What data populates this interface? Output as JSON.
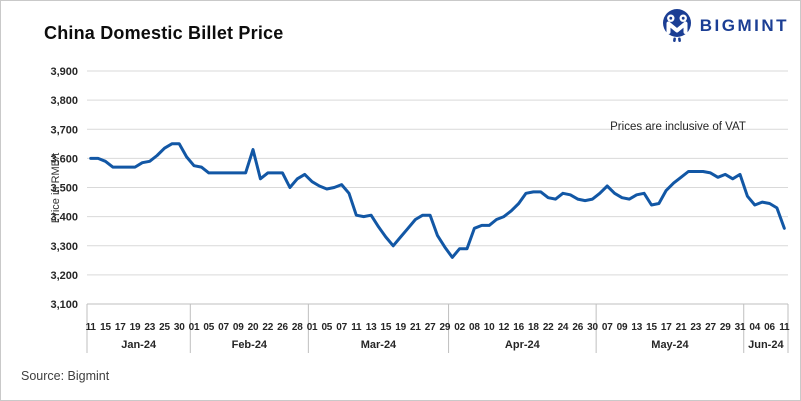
{
  "header": {
    "title": "China Domestic Billet Price",
    "logo_text": "BIGMINT",
    "logo_color": "#1b3e94"
  },
  "footer": {
    "source": "Source: Bigmint"
  },
  "colors": {
    "line": "#1257a5",
    "gridline": "#d9d9d9",
    "axis": "#bfbfbf",
    "tick_text": "#262626"
  },
  "chart_data": {
    "type": "line",
    "title": "China Domestic Billet Price",
    "ylabel": "Price in RMB/t",
    "xlabel": "",
    "annotation": "Prices are inclusive of VAT",
    "series_name": "China domestic billet price (RMB/t)",
    "ylim": [
      3100,
      3900
    ],
    "ytick_step": 100,
    "grid": "horizontal",
    "legend": "none",
    "line_color": "#1257a5",
    "months": [
      {
        "label": "Jan-24",
        "ticks": [
          "11",
          "",
          "15",
          "",
          "17",
          "",
          "19",
          "",
          "23",
          "",
          "25",
          "",
          "30",
          ""
        ],
        "values": [
          3600,
          3600,
          3590,
          3570,
          3570,
          3570,
          3570,
          3585,
          3590,
          3610,
          3635,
          3650,
          3650,
          3605
        ]
      },
      {
        "label": "Feb-24",
        "ticks": [
          "01",
          "",
          "05",
          "",
          "07",
          "",
          "09",
          "",
          "20",
          "",
          "22",
          "",
          "26",
          "",
          "28",
          ""
        ],
        "values": [
          3575,
          3570,
          3550,
          3550,
          3550,
          3550,
          3550,
          3550,
          3630,
          3530,
          3550,
          3550,
          3550,
          3500,
          3530,
          3545
        ]
      },
      {
        "label": "Mar-24",
        "ticks": [
          "01",
          "",
          "05",
          "",
          "07",
          "",
          "11",
          "",
          "13",
          "",
          "15",
          "",
          "19",
          "",
          "21",
          "",
          "27",
          "",
          "29"
        ],
        "values": [
          3520,
          3505,
          3495,
          3500,
          3510,
          3480,
          3405,
          3400,
          3405,
          3365,
          3330,
          3300,
          3330,
          3360,
          3390,
          3405,
          3405,
          3335,
          3295
        ]
      },
      {
        "label": "Apr-24",
        "ticks": [
          "",
          "02",
          "",
          "08",
          "",
          "10",
          "",
          "12",
          "",
          "16",
          "",
          "18",
          "",
          "22",
          "",
          "24",
          "",
          "26",
          "",
          "30"
        ],
        "values": [
          3260,
          3290,
          3290,
          3360,
          3370,
          3370,
          3390,
          3400,
          3420,
          3445,
          3480,
          3485,
          3485,
          3465,
          3460,
          3480,
          3475,
          3460,
          3455,
          3460
        ]
      },
      {
        "label": "May-24",
        "ticks": [
          "",
          "07",
          "",
          "09",
          "",
          "13",
          "",
          "15",
          "",
          "17",
          "",
          "21",
          "",
          "23",
          "",
          "27",
          "",
          "29",
          "",
          "31"
        ],
        "values": [
          3480,
          3505,
          3480,
          3465,
          3460,
          3475,
          3480,
          3440,
          3445,
          3490,
          3515,
          3535,
          3555,
          3555,
          3555,
          3550,
          3535,
          3545,
          3530,
          3545
        ]
      },
      {
        "label": "Jun-24",
        "ticks": [
          "",
          "04",
          "",
          "06",
          "",
          "11"
        ],
        "values": [
          3470,
          3440,
          3450,
          3445,
          3430,
          3360
        ]
      }
    ]
  }
}
